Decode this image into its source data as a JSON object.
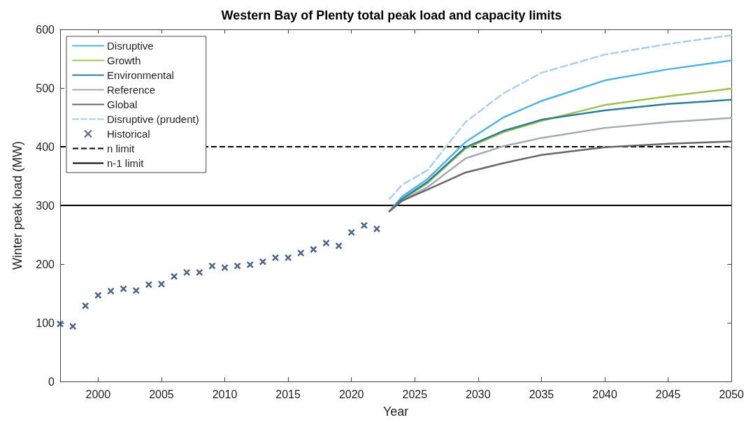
{
  "chart_data": {
    "type": "line",
    "title": "Western Bay of Plenty total peak load and capacity limits",
    "xlabel": "Year",
    "ylabel": "Winter peak load (MW)",
    "xlim": [
      1997,
      2050
    ],
    "xticks": [
      2000,
      2005,
      2010,
      2015,
      2020,
      2025,
      2030,
      2035,
      2040,
      2045,
      2050
    ],
    "ylim": [
      0,
      600
    ],
    "yticks": [
      0,
      100,
      200,
      300,
      400,
      500,
      600
    ],
    "grid": false,
    "legend": "top left",
    "marker": "none",
    "line_style": "solid",
    "series": [
      {
        "name": "Disruptive",
        "color": "#4db3e6",
        "x": [
          2023,
          2024,
          2026,
          2029,
          2032,
          2035,
          2040,
          2045,
          2050
        ],
        "values": [
          290,
          315,
          345,
          408,
          450,
          478,
          513,
          532,
          547
        ]
      },
      {
        "name": "Growth",
        "color": "#9dc34a",
        "x": [
          2023,
          2024,
          2026,
          2029,
          2032,
          2035,
          2040,
          2045,
          2050
        ],
        "values": [
          290,
          310,
          338,
          397,
          425,
          444,
          471,
          486,
          499
        ]
      },
      {
        "name": "Environmental",
        "color": "#2d7f99",
        "x": [
          2023,
          2024,
          2026,
          2029,
          2032,
          2035,
          2040,
          2045,
          2050
        ],
        "values": [
          290,
          311,
          340,
          399,
          427,
          446,
          462,
          473,
          480
        ]
      },
      {
        "name": "Reference",
        "color": "#a3a9b5",
        "x": [
          2023,
          2024,
          2026,
          2029,
          2032,
          2035,
          2040,
          2045,
          2050
        ],
        "values": [
          290,
          308,
          331,
          380,
          401,
          415,
          432,
          442,
          449
        ]
      },
      {
        "name": "Global",
        "color": "#666666",
        "x": [
          2023,
          2024,
          2026,
          2029,
          2032,
          2035,
          2040,
          2045,
          2050
        ],
        "values": [
          290,
          308,
          327,
          356,
          372,
          386,
          399,
          405,
          409
        ]
      },
      {
        "name": "Disruptive (prudent)",
        "color": "#a8d0ee",
        "line_style": "dashed",
        "x": [
          2023,
          2024,
          2026,
          2029,
          2032,
          2035,
          2040,
          2045,
          2050
        ],
        "values": [
          311,
          335,
          360,
          442,
          491,
          526,
          557,
          575,
          590
        ]
      },
      {
        "name": "Historical",
        "type": "scatter",
        "marker": "cross",
        "color": "#1f3f6b",
        "x": [
          1997,
          1998,
          1999,
          2000,
          2001,
          2002,
          2003,
          2004,
          2005,
          2006,
          2007,
          2008,
          2009,
          2010,
          2011,
          2012,
          2013,
          2014,
          2015,
          2016,
          2017,
          2018,
          2019,
          2020,
          2021,
          2022
        ],
        "values": [
          98,
          94,
          129,
          147,
          154,
          158,
          155,
          165,
          166,
          179,
          186,
          186,
          197,
          194,
          197,
          199,
          204,
          211,
          211,
          219,
          225,
          236,
          231,
          254,
          266,
          260
        ]
      }
    ],
    "ref_lines": [
      {
        "axis": "y",
        "value": 400,
        "label": "n limit",
        "color": "#000000",
        "line_style": "dashed"
      },
      {
        "axis": "y",
        "value": 300,
        "label": "n-1 limit",
        "color": "#000000",
        "line_style": "solid"
      }
    ]
  }
}
